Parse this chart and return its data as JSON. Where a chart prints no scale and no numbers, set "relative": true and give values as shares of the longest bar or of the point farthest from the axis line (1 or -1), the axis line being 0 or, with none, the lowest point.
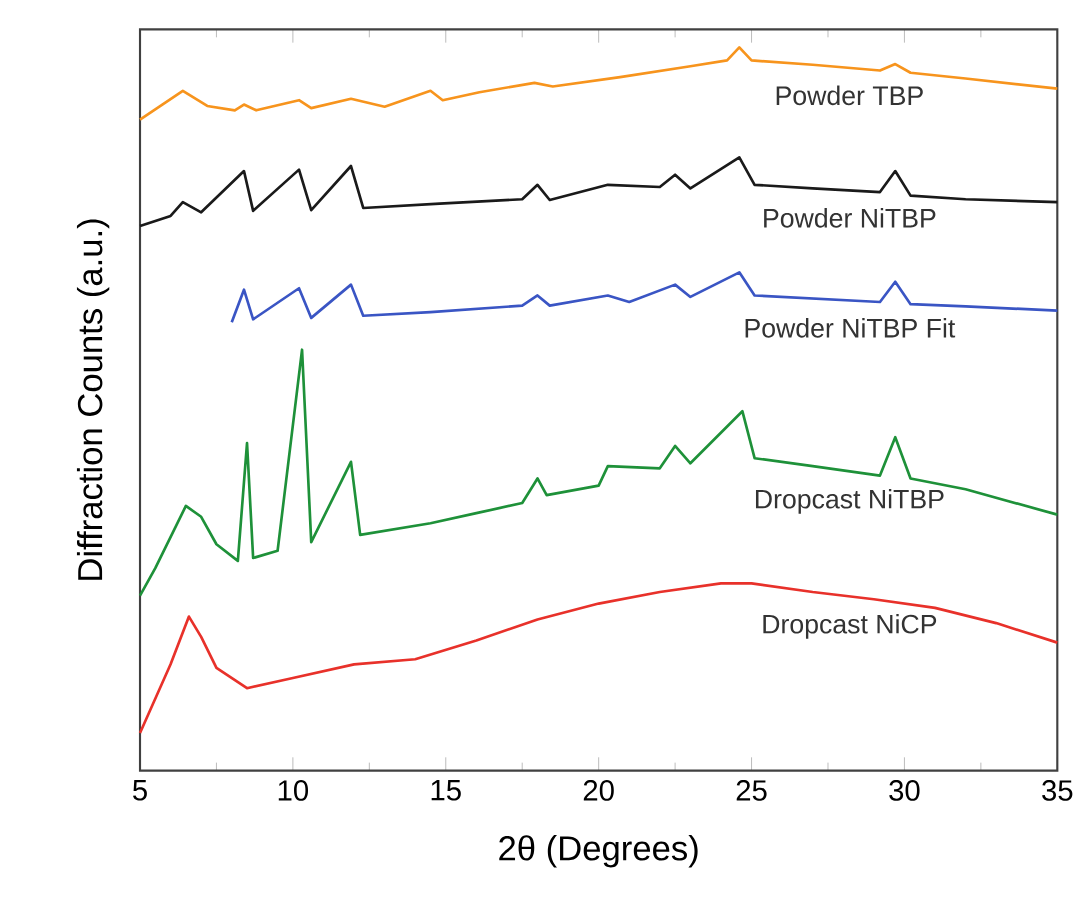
{
  "chart_data": {
    "type": "line",
    "relative": true,
    "xlabel": "2θ (Degrees)",
    "ylabel": "Diffraction Counts (a.u.)",
    "xlim": [
      5,
      35
    ],
    "xticks": [
      5,
      10,
      15,
      20,
      25,
      30,
      35
    ],
    "grid": false,
    "marker": "none",
    "line_style": "solid",
    "series": [
      {
        "name": "Powder TBP",
        "color": "#f7941d",
        "x": [
          5,
          6.4,
          7.2,
          8.1,
          8.4,
          8.8,
          10.2,
          10.6,
          11.9,
          13,
          14.5,
          14.9,
          16.1,
          17.9,
          18.5,
          20.7,
          23,
          24.2,
          24.6,
          25,
          27,
          29.2,
          29.7,
          30.2,
          32,
          35
        ],
        "values": [
          0.9,
          0.94,
          0.919,
          0.913,
          0.921,
          0.913,
          0.927,
          0.916,
          0.929,
          0.918,
          0.94,
          0.927,
          0.938,
          0.951,
          0.946,
          0.959,
          0.974,
          0.982,
          1.0,
          0.982,
          0.976,
          0.968,
          0.977,
          0.965,
          0.957,
          0.943
        ]
      },
      {
        "name": "Powder NiTBP",
        "color": "#1a1a1a",
        "x": [
          5,
          6,
          6.4,
          7,
          8.4,
          8.7,
          10.2,
          10.6,
          11.9,
          12.3,
          14.8,
          17.5,
          18,
          18.4,
          20.3,
          22,
          22.5,
          23,
          24.6,
          25.1,
          27,
          29.2,
          29.7,
          30.2,
          32,
          35
        ],
        "values": [
          0.753,
          0.767,
          0.786,
          0.772,
          0.829,
          0.774,
          0.831,
          0.775,
          0.836,
          0.778,
          0.784,
          0.79,
          0.81,
          0.789,
          0.81,
          0.807,
          0.824,
          0.805,
          0.848,
          0.81,
          0.805,
          0.8,
          0.829,
          0.795,
          0.79,
          0.786
        ]
      },
      {
        "name": "Powder NiTBP Fit",
        "color": "#3a55c4",
        "x": [
          8,
          8.4,
          8.7,
          10.2,
          10.6,
          11.9,
          12.3,
          14.5,
          17.5,
          18,
          18.4,
          20.3,
          21,
          22.5,
          23,
          24.6,
          25.1,
          29.2,
          29.7,
          30.2,
          32,
          35
        ],
        "values": [
          0.62,
          0.665,
          0.624,
          0.667,
          0.626,
          0.672,
          0.629,
          0.634,
          0.643,
          0.657,
          0.643,
          0.657,
          0.648,
          0.672,
          0.655,
          0.689,
          0.657,
          0.648,
          0.676,
          0.645,
          0.642,
          0.636
        ]
      },
      {
        "name": "Dropcast NiTBP",
        "color": "#1e9139",
        "x": [
          5,
          5.5,
          6.5,
          7,
          7.5,
          8.2,
          8.5,
          8.7,
          9.5,
          10.3,
          10.6,
          11.9,
          12.2,
          14.5,
          16,
          17.5,
          18,
          18.3,
          20,
          20.3,
          22,
          22.5,
          23,
          24.7,
          25.1,
          27,
          29.2,
          29.7,
          30.2,
          32,
          35
        ],
        "values": [
          0.242,
          0.28,
          0.366,
          0.351,
          0.313,
          0.29,
          0.453,
          0.294,
          0.304,
          0.582,
          0.316,
          0.427,
          0.326,
          0.342,
          0.356,
          0.37,
          0.404,
          0.381,
          0.394,
          0.421,
          0.418,
          0.449,
          0.425,
          0.497,
          0.432,
          0.421,
          0.408,
          0.461,
          0.404,
          0.389,
          0.354
        ]
      },
      {
        "name": "Dropcast NiCP",
        "color": "#e8312a",
        "x": [
          5,
          6,
          6.6,
          7,
          7.5,
          8.5,
          10,
          12,
          14,
          16,
          18,
          20,
          22,
          24,
          25,
          27,
          29,
          31,
          33,
          35
        ],
        "values": [
          0.052,
          0.147,
          0.213,
          0.185,
          0.142,
          0.114,
          0.128,
          0.147,
          0.154,
          0.18,
          0.209,
          0.231,
          0.247,
          0.259,
          0.259,
          0.247,
          0.237,
          0.225,
          0.204,
          0.177
        ]
      }
    ]
  }
}
